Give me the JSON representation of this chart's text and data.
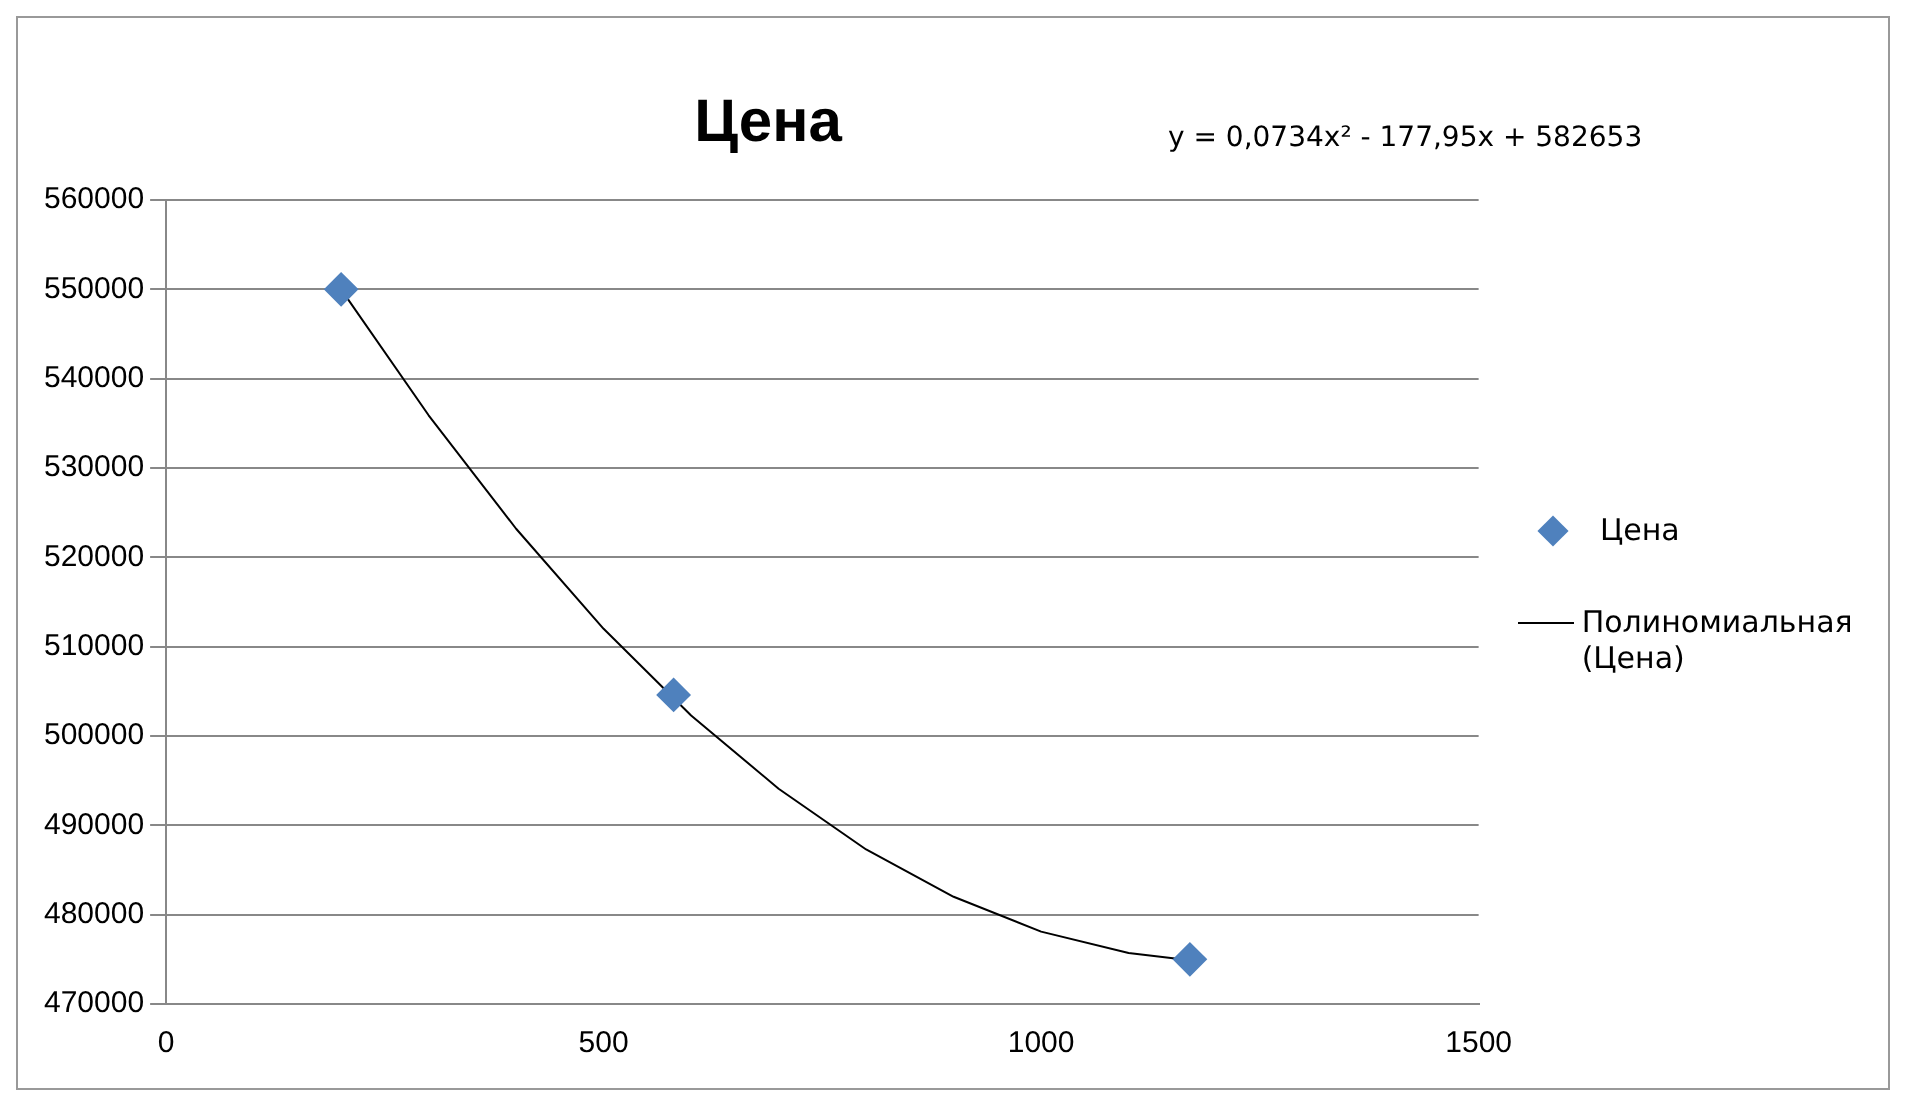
{
  "chart_data": {
    "type": "scatter",
    "title": "Цена",
    "annotations": [
      "y = 0,0734x² - 177,95x + 582653"
    ],
    "xlim": [
      0,
      1500
    ],
    "xticks": [
      0,
      500,
      1000,
      1500
    ],
    "ylim": [
      470000,
      560000
    ],
    "yticks": [
      470000,
      480000,
      490000,
      500000,
      510000,
      520000,
      530000,
      540000,
      550000,
      560000
    ],
    "grid": "y",
    "legend": "right",
    "series": [
      {
        "name": "Цена",
        "color": "#4f81bd",
        "marker": "diamond",
        "x": [
          200,
          580,
          1170
        ],
        "values": [
          550000,
          504600,
          475000
        ]
      },
      {
        "name": "Полиномиальная (Цена)",
        "type": "line",
        "color": "#000000",
        "line_style": "solid",
        "marker": "none",
        "x": [
          200,
          300,
          400,
          500,
          600,
          700,
          800,
          900,
          1000,
          1100,
          1170
        ],
        "values": [
          550000,
          535900,
          523200,
          512000,
          502300,
          494100,
          487300,
          482000,
          478100,
          475700,
          474900
        ]
      }
    ]
  }
}
